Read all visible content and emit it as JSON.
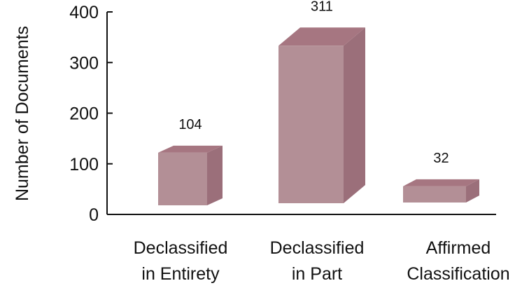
{
  "chart_data": {
    "type": "bar",
    "categories": [
      [
        "Declassified",
        "in Entirety"
      ],
      [
        "Declassified",
        "in Part"
      ],
      [
        "Affirmed",
        "Classification"
      ]
    ],
    "values": [
      104,
      311,
      32
    ],
    "value_labels": [
      "104",
      "311",
      "32"
    ],
    "ylabel": "Number of Documents",
    "ylim": [
      0,
      400
    ],
    "yticks": [
      0,
      100,
      200,
      300,
      400
    ],
    "ytick_labels": [
      "0",
      "100",
      "200",
      "300",
      "400"
    ],
    "grid": false,
    "legend": "none",
    "style": "3d-bar",
    "colors": {
      "bar_front": "#b38f96",
      "bar_top": "#a67681",
      "bar_side": "#9b6f7a",
      "axis": "#111111"
    }
  }
}
